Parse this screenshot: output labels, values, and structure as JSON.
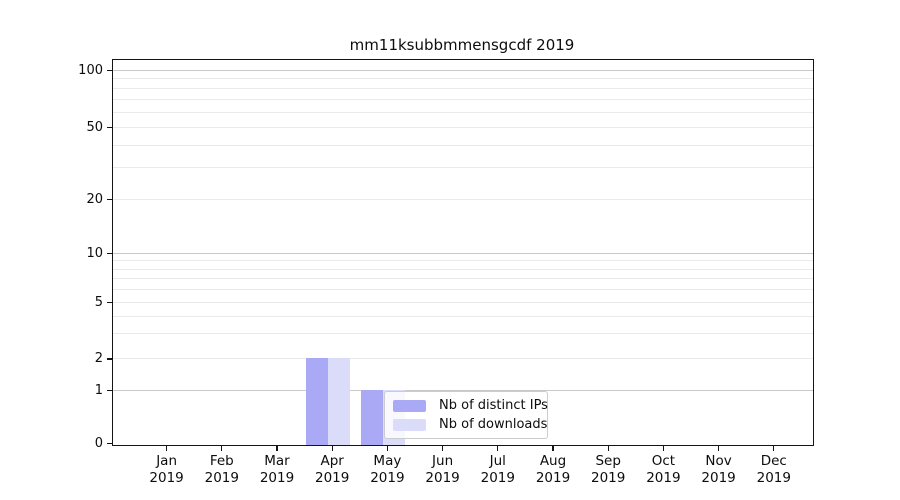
{
  "title": "mm11ksubbmmensgcdf 2019",
  "chart_data": {
    "type": "bar",
    "title": "mm11ksubbmmensgcdf 2019",
    "categories": [
      "Jan 2019",
      "Feb 2019",
      "Mar 2019",
      "Apr 2019",
      "May 2019",
      "Jun 2019",
      "Jul 2019",
      "Aug 2019",
      "Sep 2019",
      "Oct 2019",
      "Nov 2019",
      "Dec 2019"
    ],
    "x": {
      "months": [
        "Jan",
        "Feb",
        "Mar",
        "Apr",
        "May",
        "Jun",
        "Jul",
        "Aug",
        "Sep",
        "Oct",
        "Nov",
        "Dec"
      ],
      "year": "2019"
    },
    "series": [
      {
        "name": "Nb of distinct IPs",
        "color": "#a9a9f6",
        "values": [
          0,
          0,
          0,
          2,
          1,
          0,
          0,
          0,
          0,
          0,
          0,
          0
        ]
      },
      {
        "name": "Nb of downloads",
        "color": "#dbdbfa",
        "values": [
          0,
          0,
          0,
          2,
          1,
          0,
          0,
          0,
          0,
          0,
          0,
          0
        ]
      }
    ],
    "xlabel": "",
    "ylabel": "",
    "y_axis": {
      "scale": "symlog",
      "range": [
        0,
        100
      ],
      "ticks": [
        0,
        1,
        2,
        5,
        10,
        20,
        50,
        100
      ],
      "minor_gridlines": [
        3,
        4,
        6,
        7,
        8,
        9,
        30,
        40,
        60,
        70,
        80,
        90
      ],
      "major_gridline_values": [
        1,
        10,
        100
      ]
    },
    "grid": true,
    "legend_position": "lower center"
  },
  "legend": {
    "items": [
      {
        "label": "Nb of distinct IPs",
        "color": "#a9a9f6"
      },
      {
        "label": "Nb of downloads",
        "color": "#dbdbfa"
      }
    ]
  },
  "colors": {
    "background": "#ffffff",
    "axis": "#141414",
    "grid_minor": "#eaeaea",
    "grid_major": "#c9c9c9",
    "legend_border": "#cccccc",
    "bar_distinct_ips": "#a9a9f6",
    "bar_downloads": "#dbdbfa"
  }
}
